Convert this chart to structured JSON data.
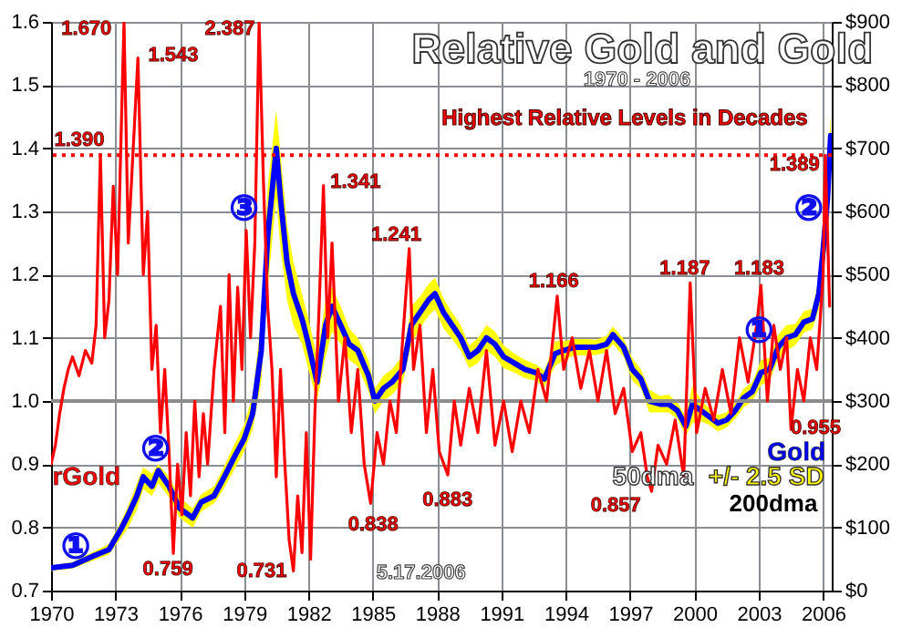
{
  "chart_data": {
    "type": "line",
    "title": "Relative Gold and Gold",
    "subtitle": "1970 - 2006",
    "xlim": [
      1970,
      2006.4
    ],
    "xticks": [
      1970,
      1973,
      1976,
      1979,
      1982,
      1985,
      1988,
      1991,
      1994,
      1997,
      2000,
      2003,
      2006
    ],
    "ylim": [
      0.7,
      1.6
    ],
    "yticks": [
      0.7,
      0.8,
      0.9,
      {
        "value": 1,
        "label": "1.0"
      },
      1.1,
      1.2,
      1.3,
      1.4,
      1.5,
      1.6
    ],
    "y2lim": [
      0,
      900
    ],
    "y2ticks": [
      {
        "value": 0,
        "label": "$0"
      },
      {
        "value": 100,
        "label": "$100"
      },
      {
        "value": 200,
        "label": "$200"
      },
      {
        "value": 300,
        "label": "$300"
      },
      {
        "value": 400,
        "label": "$400"
      },
      {
        "value": 500,
        "label": "$500"
      },
      {
        "value": 600,
        "label": "$600"
      },
      {
        "value": 700,
        "label": "$700"
      },
      {
        "value": 800,
        "label": "$800"
      },
      {
        "value": 900,
        "label": "$900"
      }
    ],
    "grid": true,
    "ref_lines": [
      {
        "axis": "y",
        "value": 1,
        "color": "#8c8c8c",
        "line_style": "solid"
      },
      {
        "axis": "y",
        "value": 1.389,
        "color": "#ff0000",
        "line_style": "dotted"
      }
    ],
    "annotations": [
      "Highest Relative Levels in Decades",
      "5.17.2006",
      "50dma",
      "+/- 2.5 SD",
      "200dma",
      "1.670",
      "1.543",
      "2.387",
      "1.390",
      "1.341",
      "1.241",
      "1.166",
      "1.187",
      "1.183",
      "1.389",
      "0.759",
      "0.731",
      "0.838",
      "0.883",
      "0.857",
      "0.955",
      "①",
      "②",
      "③",
      "①",
      "②"
    ],
    "series": [
      {
        "name": "rGold",
        "color": "#ff0000",
        "x": [
          1970.0,
          1970.2,
          1970.4,
          1970.6,
          1970.8,
          1971.0,
          1971.3,
          1971.6,
          1971.9,
          1972.1,
          1972.3,
          1972.5,
          1972.7,
          1972.9,
          1973.1,
          1973.4,
          1973.6,
          1973.8,
          1974.05,
          1974.3,
          1974.5,
          1974.7,
          1974.9,
          1975.1,
          1975.3,
          1975.5,
          1975.7,
          1975.9,
          1976.1,
          1976.3,
          1976.5,
          1976.7,
          1976.9,
          1977.1,
          1977.3,
          1977.6,
          1977.9,
          1978.1,
          1978.3,
          1978.5,
          1978.7,
          1978.9,
          1979.1,
          1979.3,
          1979.5,
          1979.7,
          1979.9,
          1980.1,
          1980.3,
          1980.5,
          1980.7,
          1980.9,
          1981.1,
          1981.3,
          1981.5,
          1981.7,
          1981.9,
          1982.1,
          1982.3,
          1982.5,
          1982.7,
          1982.9,
          1983.1,
          1983.4,
          1983.7,
          1984.0,
          1984.3,
          1984.6,
          1984.9,
          1985.2,
          1985.5,
          1985.8,
          1986.1,
          1986.4,
          1986.7,
          1986.9,
          1987.2,
          1987.5,
          1987.8,
          1988.1,
          1988.5,
          1988.8,
          1989.1,
          1989.5,
          1989.9,
          1990.3,
          1990.7,
          1991.1,
          1991.5,
          1991.9,
          1992.3,
          1992.7,
          1993.1,
          1993.6,
          1993.9,
          1994.3,
          1994.7,
          1995.1,
          1995.5,
          1995.9,
          1996.3,
          1996.7,
          1997.1,
          1997.5,
          1997.8,
          1998.0,
          1998.3,
          1998.7,
          1999.1,
          1999.5,
          1999.8,
          2000.1,
          2000.5,
          2000.9,
          2001.3,
          2001.7,
          2002.1,
          2002.5,
          2002.9,
          2003.1,
          2003.4,
          2003.7,
          2004.0,
          2004.3,
          2004.5,
          2004.8,
          2005.1,
          2005.4,
          2005.7,
          2006.0,
          2006.1,
          2006.3
        ],
        "values": [
          0.9,
          0.93,
          0.98,
          1.02,
          1.05,
          1.07,
          1.04,
          1.08,
          1.06,
          1.12,
          1.39,
          1.1,
          1.16,
          1.34,
          1.2,
          1.6,
          1.25,
          1.38,
          1.543,
          1.2,
          1.3,
          1.05,
          1.12,
          0.95,
          1.05,
          0.92,
          0.759,
          0.9,
          0.82,
          0.95,
          0.85,
          1.0,
          0.88,
          0.98,
          0.9,
          1.05,
          1.15,
          0.95,
          1.2,
          1.0,
          1.18,
          1.05,
          1.27,
          1.1,
          1.25,
          1.6,
          1.35,
          1.15,
          1.05,
          0.88,
          1.05,
          0.9,
          0.78,
          0.731,
          0.85,
          0.76,
          0.95,
          0.75,
          0.98,
          1.15,
          1.341,
          1.1,
          1.25,
          1.0,
          1.1,
          0.95,
          1.05,
          0.9,
          0.838,
          0.95,
          0.9,
          1.0,
          0.95,
          1.1,
          1.241,
          1.05,
          1.12,
          0.95,
          1.05,
          0.92,
          0.883,
          1.0,
          0.93,
          1.02,
          0.95,
          1.08,
          0.93,
          1.0,
          0.92,
          1.0,
          0.95,
          1.05,
          1.0,
          1.166,
          1.05,
          1.1,
          1.02,
          1.08,
          1.0,
          1.08,
          0.98,
          1.02,
          0.92,
          0.95,
          0.88,
          0.857,
          0.93,
          0.9,
          0.97,
          0.88,
          1.187,
          0.95,
          1.02,
          0.97,
          1.05,
          0.98,
          1.1,
          1.03,
          1.12,
          1.183,
          1.0,
          1.12,
          1.05,
          1.1,
          0.955,
          1.05,
          1.0,
          1.1,
          1.05,
          1.2,
          1.389,
          1.15
        ]
      },
      {
        "name": "Gold",
        "color": "#0000ff",
        "axis": "y2",
        "x": [
          1970,
          1971,
          1972,
          1972.7,
          1973.3,
          1973.6,
          1974,
          1974.3,
          1974.7,
          1975,
          1975.5,
          1976,
          1976.6,
          1977,
          1977.6,
          1978,
          1978.6,
          1979,
          1979.4,
          1979.8,
          1980.1,
          1980.5,
          1980.7,
          1981,
          1981.3,
          1981.7,
          1982,
          1982.4,
          1982.8,
          1983.1,
          1983.5,
          1983.9,
          1984.3,
          1984.8,
          1985.1,
          1985.5,
          1985.9,
          1986.4,
          1986.8,
          1987.2,
          1987.6,
          1987.9,
          1988.3,
          1988.7,
          1989.1,
          1989.5,
          1989.9,
          1990.3,
          1990.7,
          1991.1,
          1991.6,
          1992.1,
          1992.6,
          1993.0,
          1993.5,
          1993.9,
          1994.4,
          1994.9,
          1995.4,
          1995.9,
          1996.2,
          1996.7,
          1997.1,
          1997.5,
          1997.9,
          1998.4,
          1998.8,
          1999.2,
          1999.6,
          1999.9,
          2000.3,
          2000.7,
          2001.1,
          2001.5,
          2001.9,
          2002.3,
          2002.7,
          2003.1,
          2003.5,
          2003.9,
          2004.3,
          2004.7,
          2005.1,
          2005.5,
          2005.8,
          2006.0,
          2006.2,
          2006.35
        ],
        "values": [
          36,
          40,
          55,
          65,
          100,
          120,
          150,
          180,
          165,
          190,
          165,
          130,
          115,
          140,
          150,
          175,
          215,
          240,
          280,
          380,
          560,
          700,
          620,
          520,
          470,
          430,
          390,
          330,
          420,
          450,
          420,
          390,
          380,
          340,
          300,
          320,
          330,
          350,
          420,
          440,
          460,
          470,
          440,
          420,
          400,
          370,
          380,
          400,
          390,
          370,
          360,
          350,
          345,
          335,
          375,
          380,
          385,
          385,
          385,
          390,
          405,
          385,
          350,
          335,
          300,
          295,
          295,
          285,
          260,
          295,
          285,
          275,
          265,
          270,
          285,
          305,
          315,
          345,
          350,
          385,
          400,
          405,
          425,
          430,
          470,
          540,
          620,
          720
        ],
        "lower": [
          31,
          35,
          48,
          57,
          85,
          100,
          128,
          160,
          150,
          170,
          148,
          115,
          100,
          125,
          138,
          158,
          195,
          220,
          255,
          330,
          480,
          620,
          540,
          460,
          420,
          390,
          350,
          300,
          370,
          410,
          390,
          365,
          355,
          315,
          280,
          300,
          310,
          330,
          390,
          415,
          435,
          445,
          415,
          398,
          380,
          352,
          360,
          380,
          370,
          352,
          345,
          336,
          332,
          322,
          355,
          365,
          372,
          372,
          373,
          377,
          390,
          370,
          332,
          320,
          282,
          282,
          282,
          272,
          245,
          265,
          268,
          262,
          252,
          258,
          272,
          290,
          300,
          325,
          332,
          365,
          380,
          388,
          408,
          414,
          445,
          500,
          560,
          650
        ],
        "upper": [
          40,
          45,
          62,
          74,
          112,
          135,
          170,
          195,
          185,
          200,
          180,
          148,
          130,
          152,
          165,
          192,
          235,
          262,
          310,
          430,
          640,
          760,
          690,
          580,
          520,
          470,
          430,
          370,
          460,
          480,
          450,
          415,
          400,
          365,
          320,
          340,
          350,
          372,
          450,
          465,
          485,
          495,
          462,
          440,
          420,
          388,
          400,
          420,
          410,
          388,
          375,
          365,
          358,
          348,
          395,
          395,
          398,
          398,
          397,
          403,
          418,
          398,
          368,
          350,
          318,
          308,
          310,
          298,
          275,
          325,
          302,
          288,
          278,
          282,
          298,
          320,
          330,
          365,
          368,
          405,
          420,
          422,
          442,
          446,
          495,
          580,
          680,
          750
        ]
      }
    ]
  }
}
